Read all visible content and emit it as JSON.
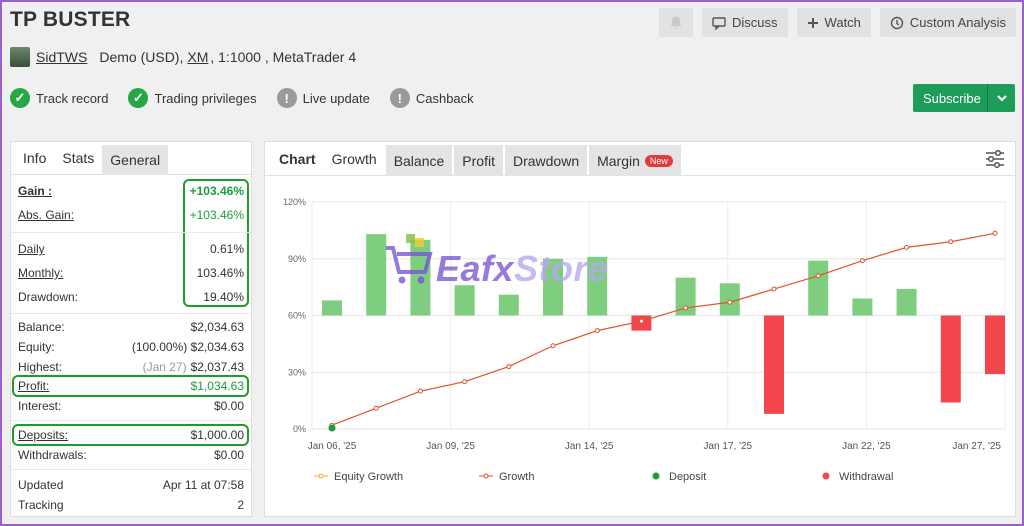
{
  "header": {
    "title": "TP BUSTER",
    "discuss": "Discuss",
    "watch": "Watch",
    "custom_analysis": "Custom Analysis",
    "user": "SidTWS",
    "account_prefix": "Demo (USD),",
    "broker": "XM",
    "account_suffix": ", 1:1000 , MetaTrader 4",
    "subscribe": "Subscribe"
  },
  "badges": [
    {
      "label": "Track record",
      "state": "ok"
    },
    {
      "label": "Trading privileges",
      "state": "ok"
    },
    {
      "label": "Live update",
      "state": "warn"
    },
    {
      "label": "Cashback",
      "state": "warn"
    }
  ],
  "left_tabs": [
    "Info",
    "Stats",
    "General"
  ],
  "stats": {
    "gain_label": "Gain :",
    "gain": "+103.46%",
    "abs_gain_label": "Abs. Gain:",
    "abs_gain": "+103.46%",
    "daily_label": "Daily",
    "daily": "0.61%",
    "monthly_label": "Monthly:",
    "monthly": "103.46%",
    "drawdown_label": "Drawdown:",
    "drawdown": "19.40%",
    "balance_label": "Balance:",
    "balance": "$2,034.63",
    "equity_label": "Equity:",
    "equity_pct": "(100.00%)",
    "equity": "$2,034.63",
    "highest_label": "Highest:",
    "highest_date": "(Jan 27)",
    "highest": "$2,037.43",
    "profit_label": "Profit:",
    "profit": "$1,034.63",
    "interest_label": "Interest:",
    "interest": "$0.00",
    "deposits_label": "Deposits:",
    "deposits": "$1,000.00",
    "withdrawals_label": "Withdrawals:",
    "withdrawals": "$0.00",
    "updated_label": "Updated",
    "updated": "Apr 11 at 07:58",
    "tracking_label": "Tracking",
    "tracking": "2"
  },
  "chart_tabs": [
    "Chart",
    "Growth",
    "Balance",
    "Profit",
    "Drawdown",
    "Margin"
  ],
  "chart_new_badge": "New",
  "watermark": {
    "brand_a": "Eafx",
    "brand_b": "Store"
  },
  "colors": {
    "accent": "#1e9c5a",
    "growth_line": "#e0542a",
    "bar_pos": "#7fce7f",
    "bar_neg": "#f2454e",
    "deposit": "#1a9e3a"
  },
  "chart_data": {
    "type": "bar",
    "y_ticks": [
      "0%",
      "30%",
      "60%",
      "90%",
      "120%"
    ],
    "ylim": [
      0,
      120
    ],
    "x_ticks": [
      "Jan 06, '25",
      "Jan 09, '25",
      "Jan 14, '25",
      "Jan 17, '25",
      "Jan 22, '25",
      "Jan 27, '25"
    ],
    "legend": [
      "Equity Growth",
      "Growth",
      "Deposit",
      "Withdrawal"
    ],
    "daily_bars": [
      8,
      43,
      40,
      16,
      11,
      30,
      31,
      -8,
      20,
      17,
      -52,
      29,
      9,
      14,
      -46,
      -31
    ],
    "growth": [
      2,
      11,
      20,
      25,
      33,
      44,
      52,
      57,
      64,
      67,
      74,
      81,
      89,
      96,
      99,
      103.46
    ],
    "deposit_index": 0
  }
}
